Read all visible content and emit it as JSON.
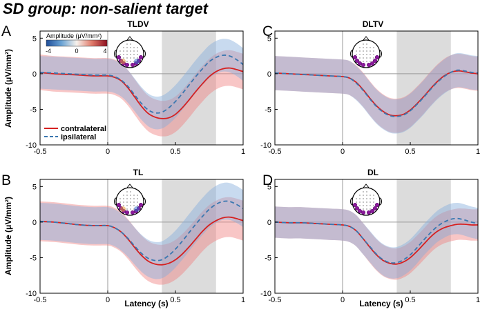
{
  "figure": {
    "title": "SD group: non-salient target",
    "xlabel": "Latency (s)",
    "ylabel": "Amplitude (μV/mm²)"
  },
  "colors": {
    "contra": "#d62020",
    "ipsi": "#3a77b0",
    "contra_band": "#f08080",
    "ipsi_band": "#86aedb",
    "window": "#dcdcdc"
  },
  "legend": {
    "contralateral": "contralateral",
    "ipsilateral": "ipsilateral"
  },
  "colorbar": {
    "label": "Amplitude (μV/mm²)",
    "ticks": [
      "-4",
      "0",
      "4"
    ]
  },
  "chart_data": [
    {
      "type": "line",
      "panel": "A",
      "title": "TLDV",
      "xlim": [
        -0.5,
        1.0
      ],
      "ylim": [
        -10,
        6
      ],
      "xticks": [
        "-0.5",
        "0",
        "0.5",
        "1"
      ],
      "yticks": [
        "-10",
        "-5",
        "0",
        "5"
      ],
      "shaded_window": [
        0.4,
        0.8
      ],
      "x": [
        -0.5,
        -0.4,
        -0.3,
        -0.2,
        -0.1,
        0.0,
        0.05,
        0.1,
        0.15,
        0.2,
        0.25,
        0.3,
        0.35,
        0.4,
        0.45,
        0.5,
        0.55,
        0.6,
        0.65,
        0.7,
        0.75,
        0.8,
        0.85,
        0.9,
        0.95,
        1.0
      ],
      "series": [
        {
          "name": "contralateral",
          "values": [
            0.2,
            0.0,
            -0.1,
            -0.2,
            -0.3,
            -0.3,
            -0.5,
            -1.0,
            -2.0,
            -3.3,
            -4.6,
            -5.6,
            -6.1,
            -6.3,
            -6.2,
            -5.7,
            -4.8,
            -3.7,
            -2.5,
            -1.4,
            -0.4,
            0.3,
            0.7,
            0.8,
            0.6,
            0.3
          ],
          "band": 2.5
        },
        {
          "name": "ipsilateral",
          "values": [
            0.2,
            0.1,
            0.0,
            -0.1,
            -0.2,
            -0.2,
            -0.4,
            -0.9,
            -1.8,
            -3.0,
            -4.2,
            -5.1,
            -5.5,
            -5.4,
            -4.8,
            -3.9,
            -2.8,
            -1.6,
            -0.4,
            0.7,
            1.7,
            2.3,
            2.6,
            2.5,
            2.0,
            1.3
          ],
          "band": 2.3
        }
      ]
    },
    {
      "type": "line",
      "panel": "C",
      "title": "DLTV",
      "xlim": [
        -0.5,
        1.0
      ],
      "ylim": [
        -10,
        6
      ],
      "xticks": [
        "-0.5",
        "0",
        "0.5",
        "1"
      ],
      "yticks": [
        "-10",
        "-5",
        "0",
        "5"
      ],
      "shaded_window": [
        0.4,
        0.8
      ],
      "x": [
        -0.5,
        -0.4,
        -0.3,
        -0.2,
        -0.1,
        0.0,
        0.05,
        0.1,
        0.15,
        0.2,
        0.25,
        0.3,
        0.35,
        0.4,
        0.45,
        0.5,
        0.55,
        0.6,
        0.65,
        0.7,
        0.75,
        0.8,
        0.85,
        0.9,
        0.95,
        1.0
      ],
      "series": [
        {
          "name": "contralateral",
          "values": [
            0.1,
            0.0,
            -0.1,
            -0.2,
            -0.3,
            -0.4,
            -0.6,
            -1.2,
            -2.2,
            -3.4,
            -4.5,
            -5.3,
            -5.8,
            -5.9,
            -5.7,
            -5.1,
            -4.2,
            -3.2,
            -2.1,
            -1.1,
            -0.3,
            0.2,
            0.4,
            0.3,
            0.1,
            0.0
          ],
          "band": 2.4
        },
        {
          "name": "ipsilateral",
          "values": [
            0.1,
            0.0,
            -0.1,
            -0.2,
            -0.3,
            -0.4,
            -0.6,
            -1.3,
            -2.3,
            -3.5,
            -4.6,
            -5.4,
            -5.9,
            -6.0,
            -5.8,
            -5.2,
            -4.3,
            -3.3,
            -2.2,
            -1.2,
            -0.4,
            0.2,
            0.5,
            0.4,
            0.2,
            0.1
          ],
          "band": 2.4
        }
      ]
    },
    {
      "type": "line",
      "panel": "B",
      "title": "TL",
      "xlim": [
        -0.5,
        1.0
      ],
      "ylim": [
        -10,
        6
      ],
      "xticks": [
        "-0.5",
        "0",
        "0.5",
        "1"
      ],
      "yticks": [
        "-10",
        "-5",
        "0",
        "5"
      ],
      "shaded_window": [
        0.4,
        0.8
      ],
      "x": [
        -0.5,
        -0.4,
        -0.3,
        -0.2,
        -0.1,
        0.0,
        0.05,
        0.1,
        0.15,
        0.2,
        0.25,
        0.3,
        0.35,
        0.4,
        0.45,
        0.5,
        0.55,
        0.6,
        0.65,
        0.7,
        0.75,
        0.8,
        0.85,
        0.9,
        0.95,
        1.0
      ],
      "series": [
        {
          "name": "contralateral",
          "values": [
            0.1,
            0.0,
            -0.2,
            -0.4,
            -0.5,
            -0.5,
            -0.8,
            -1.4,
            -2.4,
            -3.6,
            -4.7,
            -5.5,
            -5.9,
            -6.0,
            -5.8,
            -5.3,
            -4.5,
            -3.5,
            -2.4,
            -1.3,
            -0.4,
            0.2,
            0.6,
            0.7,
            0.5,
            0.2
          ],
          "band": 2.8
        },
        {
          "name": "ipsilateral",
          "values": [
            0.1,
            0.0,
            -0.2,
            -0.4,
            -0.5,
            -0.5,
            -0.8,
            -1.4,
            -2.3,
            -3.4,
            -4.4,
            -5.1,
            -5.4,
            -5.3,
            -4.7,
            -3.8,
            -2.7,
            -1.5,
            -0.3,
            0.8,
            1.8,
            2.5,
            2.9,
            2.9,
            2.5,
            1.9
          ],
          "band": 2.6
        }
      ]
    },
    {
      "type": "line",
      "panel": "D",
      "title": "DL",
      "xlim": [
        -0.5,
        1.0
      ],
      "ylim": [
        -10,
        6
      ],
      "xticks": [
        "-0.5",
        "0",
        "0.5",
        "1"
      ],
      "yticks": [
        "-10",
        "-5",
        "0",
        "5"
      ],
      "shaded_window": [
        0.4,
        0.8
      ],
      "x": [
        -0.5,
        -0.4,
        -0.3,
        -0.2,
        -0.1,
        0.0,
        0.05,
        0.1,
        0.15,
        0.2,
        0.25,
        0.3,
        0.35,
        0.4,
        0.45,
        0.5,
        0.55,
        0.6,
        0.65,
        0.7,
        0.75,
        0.8,
        0.85,
        0.9,
        0.95,
        1.0
      ],
      "series": [
        {
          "name": "contralateral",
          "values": [
            0.0,
            -0.1,
            -0.1,
            -0.2,
            -0.3,
            -0.4,
            -0.6,
            -1.2,
            -2.3,
            -3.5,
            -4.6,
            -5.4,
            -5.8,
            -5.9,
            -5.6,
            -5.0,
            -4.1,
            -3.1,
            -2.1,
            -1.3,
            -0.8,
            -0.5,
            -0.3,
            -0.3,
            -0.4,
            -0.4
          ],
          "band": 2.2
        },
        {
          "name": "ipsilateral",
          "values": [
            0.0,
            -0.1,
            -0.1,
            -0.2,
            -0.3,
            -0.4,
            -0.6,
            -1.2,
            -2.3,
            -3.4,
            -4.5,
            -5.3,
            -5.7,
            -5.7,
            -5.3,
            -4.6,
            -3.6,
            -2.5,
            -1.5,
            -0.6,
            0.0,
            0.4,
            0.5,
            0.3,
            0.0,
            -0.2
          ],
          "band": 2.2
        }
      ]
    }
  ]
}
